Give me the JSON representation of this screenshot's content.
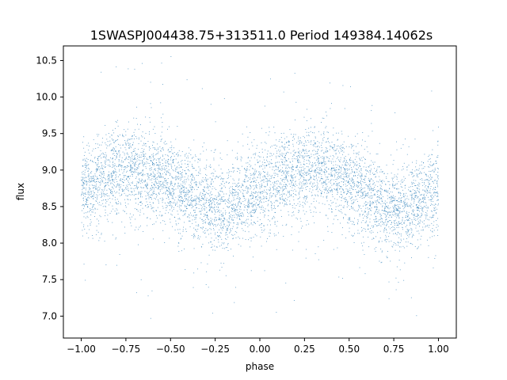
{
  "chart_data": {
    "type": "scatter",
    "title": "1SWASPJ004438.75+313511.0 Period 149384.14062s",
    "xlabel": "phase",
    "ylabel": "flux",
    "xlim": [
      -1.1,
      1.1
    ],
    "ylim": [
      6.7,
      10.7
    ],
    "x_ticks": [
      -1.0,
      -0.75,
      -0.5,
      -0.25,
      0.0,
      0.25,
      0.5,
      0.75,
      1.0
    ],
    "x_tick_labels": [
      "−1.00",
      "−0.75",
      "−0.50",
      "−0.25",
      "0.00",
      "0.25",
      "0.50",
      "0.75",
      "1.00"
    ],
    "y_ticks": [
      7.0,
      7.5,
      8.0,
      8.5,
      9.0,
      9.5,
      10.0,
      10.5
    ],
    "y_tick_labels": [
      "7.0",
      "7.5",
      "8.0",
      "8.5",
      "9.0",
      "9.5",
      "10.0",
      "10.5"
    ],
    "grid": false,
    "marker_color": "#1f77b4",
    "series": [
      {
        "x_range": [
          -1.0,
          1.0
        ],
        "mean_curve": {
          "phase": [
            -1.0,
            -0.9,
            -0.8,
            -0.7,
            -0.6,
            -0.5,
            -0.4,
            -0.3,
            -0.25,
            -0.2,
            -0.1,
            0.0,
            0.1,
            0.2,
            0.3,
            0.4,
            0.5,
            0.6,
            0.7,
            0.75,
            0.8,
            0.9,
            1.0
          ],
          "flux": [
            8.72,
            8.85,
            8.98,
            9.02,
            8.95,
            8.82,
            8.66,
            8.52,
            8.47,
            8.46,
            8.58,
            8.72,
            8.85,
            8.98,
            9.02,
            8.95,
            8.82,
            8.66,
            8.52,
            8.47,
            8.46,
            8.58,
            8.72
          ]
        },
        "scatter_sigma_flux": 0.3,
        "outlier_flux_range": [
          6.9,
          10.6
        ]
      }
    ]
  }
}
